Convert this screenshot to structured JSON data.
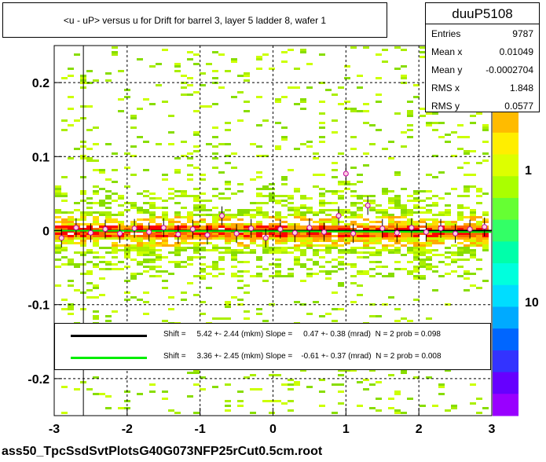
{
  "header": {
    "title": "<u - uP>       versus   u for Drift for barrel 3, layer 5 ladder 8, wafer 1"
  },
  "stats": {
    "name": "duuP5108",
    "rows": [
      {
        "label": "Entries",
        "value": "9787"
      },
      {
        "label": "Mean x",
        "value": "0.01049"
      },
      {
        "label": "Mean y",
        "value": "-0.0002704"
      },
      {
        "label": "RMS x",
        "value": "1.848"
      },
      {
        "label": "RMS y",
        "value": "0.0577"
      }
    ]
  },
  "fits": [
    {
      "color": "#000000",
      "text": "Shift =     5.42 +- 2.44 (mkm) Slope =     0.47 +- 0.38 (mrad)  N = 2 prob = 0.098"
    },
    {
      "color": "#00ee00",
      "text": "Shift =     3.36 +- 2.45 (mkm) Slope =    -0.61 +- 0.37 (mrad)  N = 2 prob = 0.008"
    }
  ],
  "footer": {
    "text": "ass50_TpcSsdSvtPlotsG40G073NFP25rCut0.5cm.root"
  },
  "chart_data": {
    "type": "heatmap",
    "title": "<u - uP>       versus   u for Drift for barrel 3, layer 5 ladder 8, wafer 1",
    "xlim": [
      -3,
      3
    ],
    "ylim": [
      -0.25,
      0.25
    ],
    "x_ticks": [
      "-3",
      "-2",
      "-1",
      "0",
      "1",
      "2",
      "3"
    ],
    "y_ticks": [
      "-0.2",
      "-0.1",
      "0",
      "0.1",
      "0.2"
    ],
    "colorbar_ticks": [
      "10",
      "1",
      "10"
    ],
    "colorbar_scale": "log",
    "grid": true,
    "legend_position": "bottom",
    "fit_lines": [
      {
        "color": "#000000",
        "x": [
          -3,
          3
        ],
        "y": [
          0.0,
          0.0
        ]
      },
      {
        "color": "#00ee00",
        "x": [
          -3,
          3
        ],
        "y": [
          0.0,
          -0.002
        ]
      }
    ],
    "profile_points": [
      {
        "x": -2.9,
        "y": -0.01
      },
      {
        "x": -2.7,
        "y": 0.004
      },
      {
        "x": -2.5,
        "y": -0.003
      },
      {
        "x": -2.3,
        "y": 0.002
      },
      {
        "x": -2.1,
        "y": -0.004
      },
      {
        "x": -1.9,
        "y": 0.003
      },
      {
        "x": -1.7,
        "y": -0.002
      },
      {
        "x": -1.5,
        "y": 0.004
      },
      {
        "x": -1.3,
        "y": -0.005
      },
      {
        "x": -1.1,
        "y": 0.002
      },
      {
        "x": -0.9,
        "y": -0.006
      },
      {
        "x": -0.7,
        "y": 0.02
      },
      {
        "x": -0.5,
        "y": -0.004
      },
      {
        "x": -0.3,
        "y": 0.003
      },
      {
        "x": -0.1,
        "y": -0.01
      },
      {
        "x": 0.1,
        "y": 0.002
      },
      {
        "x": 0.3,
        "y": -0.003
      },
      {
        "x": 0.5,
        "y": 0.004
      },
      {
        "x": 0.7,
        "y": -0.002
      },
      {
        "x": 0.9,
        "y": 0.02
      },
      {
        "x": 1.0,
        "y": 0.077
      },
      {
        "x": 1.1,
        "y": -0.004
      },
      {
        "x": 1.3,
        "y": 0.034
      },
      {
        "x": 1.5,
        "y": 0.003
      },
      {
        "x": 1.7,
        "y": -0.003
      },
      {
        "x": 1.9,
        "y": 0.004
      },
      {
        "x": 2.1,
        "y": -0.002
      },
      {
        "x": 2.3,
        "y": 0.003
      },
      {
        "x": 2.5,
        "y": -0.004
      },
      {
        "x": 2.7,
        "y": 0.002
      },
      {
        "x": 2.9,
        "y": 0.005
      }
    ]
  }
}
